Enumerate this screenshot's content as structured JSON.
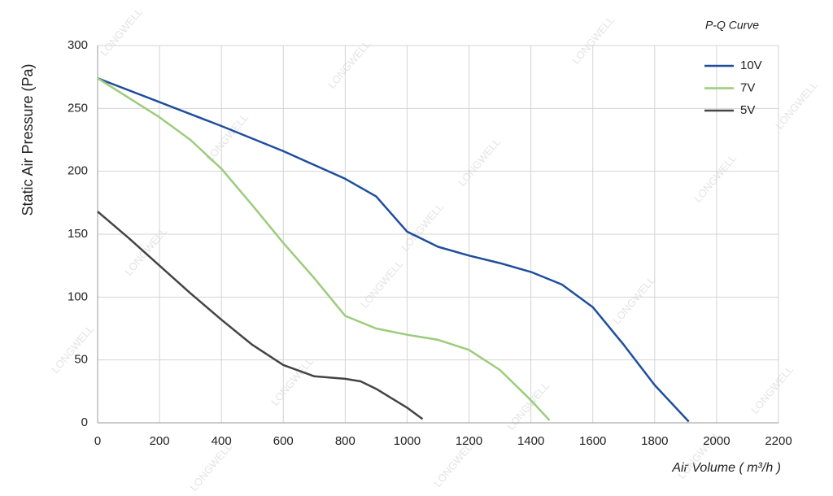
{
  "chart_data": {
    "type": "line",
    "title": "P-Q Curve",
    "x_label": "Air Volume ( m³/h )",
    "y_label": "Static Air Pressure  (Pa)",
    "watermark": "LONGWELL",
    "xlim": [
      0,
      2200
    ],
    "xticks": [
      0,
      200,
      400,
      600,
      800,
      1000,
      1200,
      1400,
      1600,
      1800,
      2000,
      2200
    ],
    "ylim": [
      0,
      300
    ],
    "yticks": [
      0,
      50,
      100,
      150,
      200,
      250,
      300
    ],
    "grid": true,
    "legend": "top-right",
    "series": [
      {
        "name": "10V",
        "color": "#1f4e9c",
        "x": [
          0,
          200,
          400,
          600,
          800,
          900,
          1000,
          1100,
          1200,
          1300,
          1400,
          1500,
          1600,
          1700,
          1800,
          1910
        ],
        "values": [
          274,
          255,
          236,
          216,
          194,
          180,
          152,
          140,
          133,
          127,
          120,
          110,
          92,
          62,
          30,
          1
        ]
      },
      {
        "name": "7V",
        "color": "#9ccc7c",
        "x": [
          0,
          200,
          300,
          400,
          500,
          600,
          700,
          800,
          900,
          1000,
          1100,
          1200,
          1300,
          1400,
          1460
        ],
        "values": [
          274,
          243,
          225,
          202,
          173,
          143,
          115,
          85,
          75,
          70,
          66,
          58,
          42,
          18,
          2
        ]
      },
      {
        "name": "5V",
        "color": "#444444",
        "x": [
          0,
          100,
          200,
          300,
          400,
          500,
          600,
          700,
          800,
          850,
          900,
          1000,
          1050
        ],
        "values": [
          168,
          147,
          125,
          103,
          82,
          62,
          46,
          37,
          35,
          33,
          27,
          12,
          3
        ]
      }
    ]
  }
}
